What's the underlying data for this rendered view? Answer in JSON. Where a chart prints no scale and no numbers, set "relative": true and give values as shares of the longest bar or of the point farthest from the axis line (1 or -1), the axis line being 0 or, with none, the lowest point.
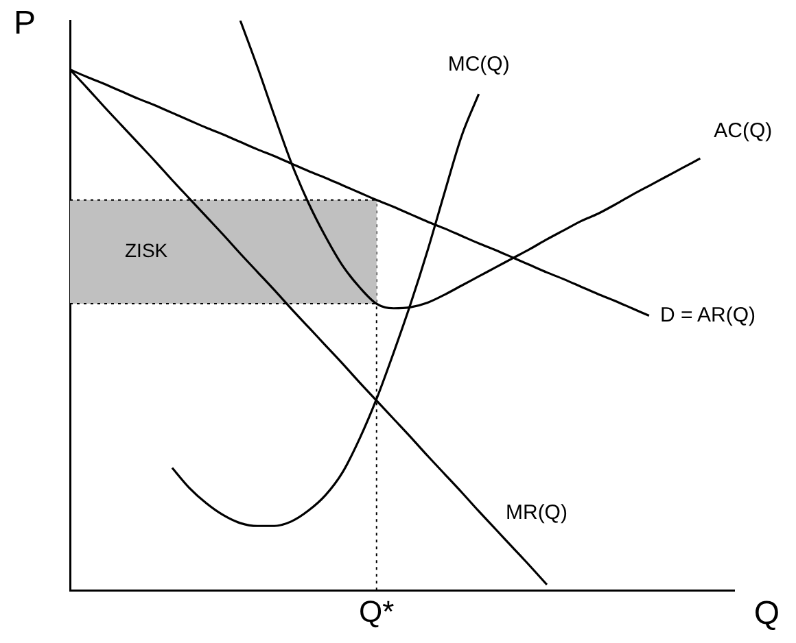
{
  "chart_data": {
    "type": "line",
    "relative": true,
    "xlabel": "Q",
    "ylabel": "P",
    "categories": [
      null,
      null,
      null,
      null,
      null,
      null,
      null,
      null,
      null,
      null,
      null,
      null,
      null,
      null,
      null,
      null,
      null,
      null,
      null,
      null,
      null,
      null,
      null,
      null,
      null,
      null,
      null,
      null,
      null,
      null,
      null,
      null,
      null,
      null,
      null,
      null,
      null,
      null,
      null,
      null
    ],
    "annotations": [
      "Q*"
    ],
    "ref_lines": [
      {
        "axis": "y",
        "value": 0.685,
        "line_style": "dotted"
      },
      {
        "axis": "y",
        "value": 0.503,
        "line_style": "dotted"
      }
    ],
    "series": [
      {
        "name": "MC(Q)",
        "color": "#000000",
        "values": [
          null,
          null,
          null,
          null,
          null,
          null,
          0.215,
          0.18,
          0.153,
          0.132,
          0.118,
          0.113,
          0.113,
          0.121,
          0.14,
          0.167,
          0.207,
          0.266,
          0.336,
          0.417,
          0.503,
          0.597,
          0.699,
          0.798,
          0.871,
          null,
          null,
          null,
          null,
          null,
          null,
          null,
          null,
          null,
          null,
          null,
          null,
          null,
          null,
          null
        ]
      },
      {
        "name": "AC(Q)",
        "color": "#000000",
        "values": [
          null,
          null,
          null,
          null,
          null,
          null,
          null,
          null,
          null,
          null,
          1.0,
          0.919,
          0.833,
          0.75,
          0.68,
          0.621,
          0.57,
          0.532,
          0.503,
          0.495,
          0.497,
          0.505,
          0.519,
          0.535,
          0.551,
          0.567,
          0.583,
          0.599,
          0.616,
          0.632,
          0.648,
          0.661,
          0.677,
          0.694,
          0.71,
          0.726,
          0.742,
          0.758,
          null,
          null
        ]
      },
      {
        "name": "D = AR(Q)",
        "color": "#000000",
        "values": [
          0.914,
          0.901,
          0.889,
          0.876,
          0.863,
          0.851,
          0.838,
          0.825,
          0.812,
          0.8,
          0.787,
          0.774,
          0.762,
          0.749,
          0.736,
          0.724,
          0.711,
          0.698,
          0.685,
          0.673,
          0.66,
          0.647,
          0.635,
          0.622,
          0.609,
          0.597,
          0.584,
          0.571,
          0.558,
          0.546,
          0.533,
          0.52,
          0.508,
          0.495,
          0.482,
          null,
          null,
          null,
          null,
          null
        ]
      },
      {
        "name": "MR(Q)",
        "color": "#000000",
        "values": [
          0.914,
          0.882,
          0.849,
          0.817,
          0.785,
          0.753,
          0.72,
          0.688,
          0.656,
          0.624,
          0.591,
          0.559,
          0.527,
          0.494,
          0.462,
          0.43,
          0.398,
          0.365,
          0.333,
          0.301,
          0.269,
          0.236,
          0.204,
          0.172,
          0.139,
          0.107,
          0.075,
          0.043,
          0.01,
          null,
          null,
          null,
          null,
          null,
          null,
          null,
          null,
          null,
          null,
          null
        ]
      }
    ],
    "bands": [
      {
        "axis": "y",
        "from": 0.503,
        "to": 0.685,
        "label": "ZISK",
        "color": "#c0c0c0"
      }
    ],
    "grid": false,
    "marker": "none",
    "line_style": "solid"
  }
}
